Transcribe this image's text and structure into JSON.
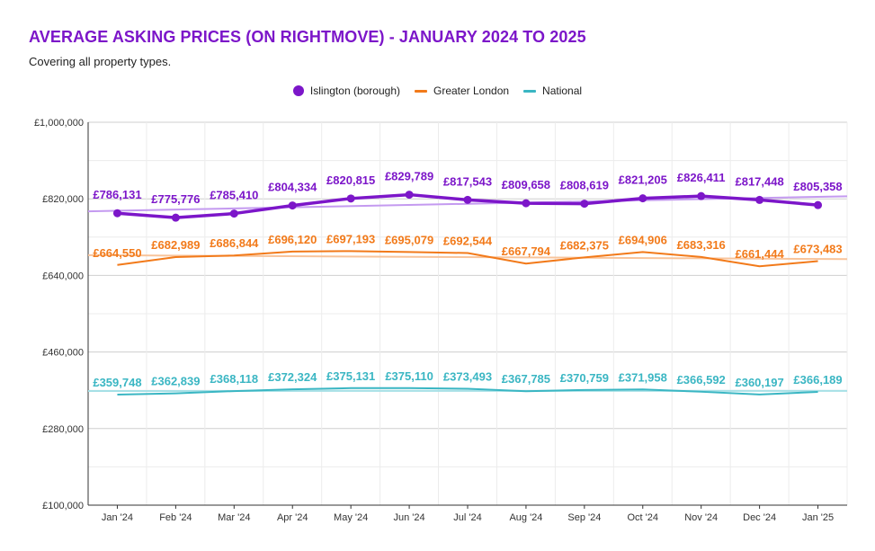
{
  "chart_data": {
    "type": "line",
    "title": "AVERAGE ASKING PRICES (ON RIGHTMOVE) - JANUARY 2024 TO 2025",
    "subtitle": "Covering all property types.",
    "categories": [
      "Jan '24",
      "Feb '24",
      "Mar '24",
      "Apr '24",
      "May '24",
      "Jun '24",
      "Jul '24",
      "Aug '24",
      "Sep '24",
      "Oct '24",
      "Nov '24",
      "Dec '24",
      "Jan '25"
    ],
    "ylim": [
      100000,
      1000000
    ],
    "yticks": [
      100000,
      280000,
      460000,
      640000,
      820000,
      1000000
    ],
    "ytick_labels": [
      "£100,000",
      "£280,000",
      "£460,000",
      "£640,000",
      "£820,000",
      "£1,000,000"
    ],
    "legend_position": "top-center",
    "series": [
      {
        "name": "Islington (borough)",
        "color": "#7c16c9",
        "trend_color": "#c49af0",
        "marker": "circle",
        "values": [
          786131,
          775776,
          785410,
          804334,
          820815,
          829789,
          817543,
          809658,
          808619,
          821205,
          826411,
          817448,
          805358
        ],
        "labels": [
          "£786,131",
          "£775,776",
          "£785,410",
          "£804,334",
          "£820,815",
          "£829,789",
          "£817,543",
          "£809,658",
          "£808,619",
          "£821,205",
          "£826,411",
          "£817,448",
          "£805,358"
        ]
      },
      {
        "name": "Greater London",
        "color": "#f27a1a",
        "trend_color": "#f8c49b",
        "marker": "none",
        "values": [
          664550,
          682989,
          686844,
          696120,
          697193,
          695079,
          692544,
          667794,
          682375,
          694906,
          683316,
          661444,
          673483
        ],
        "labels": [
          "£664,550",
          "£682,989",
          "£686,844",
          "£696,120",
          "£697,193",
          "£695,079",
          "£692,544",
          "£667,794",
          "£682,375",
          "£694,906",
          "£683,316",
          "£661,444",
          "£673,483"
        ]
      },
      {
        "name": "National",
        "color": "#3ab6c3",
        "trend_color": "#a6e0e6",
        "marker": "none",
        "values": [
          359748,
          362839,
          368118,
          372324,
          375131,
          375110,
          373493,
          367785,
          370759,
          371958,
          366592,
          360197,
          366189
        ],
        "labels": [
          "£359,748",
          "£362,839",
          "£368,118",
          "£372,324",
          "£375,131",
          "£375,110",
          "£373,493",
          "£367,785",
          "£370,759",
          "£371,958",
          "£366,592",
          "£360,197",
          "£366,189"
        ]
      }
    ]
  }
}
